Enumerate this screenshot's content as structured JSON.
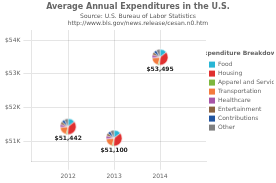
{
  "chart_data": {
    "type": "scatter",
    "title": "Average Annual Expenditures in the U.S.",
    "subtitle": [
      "Source: U.S. Bureau of Labor Statistics",
      "http://www.bls.gov/news.release/cesan.n0.htm"
    ],
    "x": [
      2012,
      2013,
      2014
    ],
    "values": [
      51442,
      51100,
      53495
    ],
    "value_labels": [
      "$51,442",
      "$51,100",
      "$53,495"
    ],
    "data_labels": true,
    "marker": "pie",
    "pies": {
      "categories": [
        "Food",
        "Housing",
        "Apparel and Services",
        "Transportation",
        "Healthcare",
        "Entertainment",
        "Contributions",
        "Other"
      ],
      "colors": [
        "#29b6d5",
        "#e03030",
        "#7db73d",
        "#f47b3e",
        "#a855a8",
        "#8b6340",
        "#2255a0",
        "#808080"
      ],
      "values": [
        [
          0.13,
          0.33,
          0.03,
          0.17,
          0.06,
          0.05,
          0.06,
          0.07
        ],
        [
          0.13,
          0.33,
          0.03,
          0.17,
          0.06,
          0.05,
          0.06,
          0.07
        ],
        [
          0.13,
          0.33,
          0.03,
          0.17,
          0.06,
          0.05,
          0.06,
          0.07
        ]
      ]
    },
    "legend_title": "Expenditure Breakdown",
    "legend": "right",
    "grid": true,
    "xlim": [
      2011.2,
      2015.0
    ],
    "xticks": [
      2012,
      2013,
      2014
    ],
    "ylim": [
      50400,
      54300
    ],
    "yticks": [
      {
        "value": 51000,
        "label": "$51K"
      },
      {
        "value": 52000,
        "label": "$52K"
      },
      {
        "value": 53000,
        "label": "$53K"
      },
      {
        "value": 54000,
        "label": "$54K"
      }
    ]
  }
}
